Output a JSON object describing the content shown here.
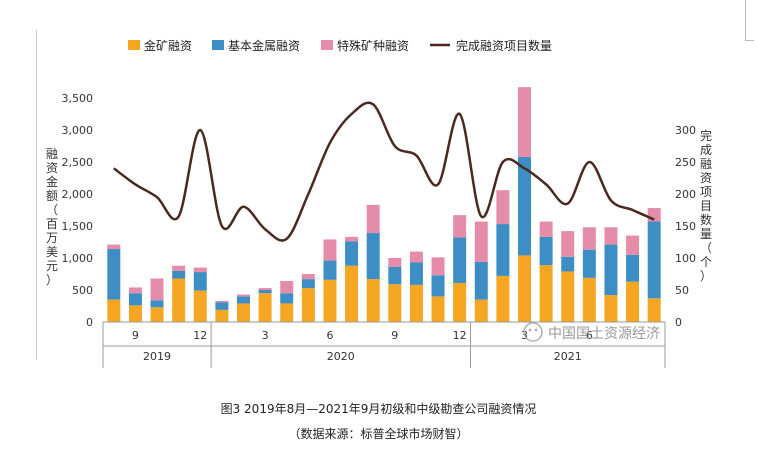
{
  "chart_data": {
    "type": "bar",
    "stacked": true,
    "legend_position": "top",
    "colors": {
      "gold": "#f5a623",
      "base": "#3d8ec4",
      "special": "#e58ca8",
      "line": "#4a2a20"
    },
    "series": [
      {
        "name": "金矿融资",
        "key": "gold",
        "values": [
          350,
          260,
          230,
          680,
          490,
          190,
          290,
          450,
          290,
          530,
          660,
          880,
          670,
          590,
          580,
          400,
          610,
          350,
          720,
          1040,
          890,
          790,
          690,
          420,
          630,
          370
        ]
      },
      {
        "name": "基本金属融资",
        "key": "base",
        "values": [
          790,
          190,
          110,
          120,
          290,
          120,
          110,
          50,
          160,
          140,
          300,
          380,
          720,
          270,
          350,
          330,
          710,
          590,
          810,
          1540,
          440,
          230,
          440,
          790,
          420,
          1200
        ]
      },
      {
        "name": "特殊矿种融资",
        "key": "special",
        "values": [
          70,
          90,
          340,
          80,
          70,
          20,
          30,
          30,
          190,
          80,
          330,
          70,
          440,
          140,
          170,
          280,
          350,
          630,
          530,
          1090,
          240,
          400,
          350,
          270,
          300,
          210
        ]
      }
    ],
    "line_series": {
      "name": "完成融资项目数量",
      "key": "line",
      "axis": "right",
      "values": [
        240,
        215,
        195,
        165,
        300,
        150,
        180,
        145,
        130,
        200,
        280,
        325,
        340,
        275,
        260,
        215,
        325,
        165,
        250,
        240,
        215,
        185,
        250,
        190,
        175,
        160
      ]
    },
    "y_left": {
      "label": "融资金额（百万美元）",
      "ticks": [
        "0",
        "500",
        "1,000",
        "1,500",
        "2,000",
        "2,500",
        "3,000",
        "3,500"
      ],
      "range": [
        0,
        3500
      ]
    },
    "y_right": {
      "label": "完成融资项目数量（个）",
      "ticks": [
        "0",
        "50",
        "100",
        "150",
        "200",
        "250",
        "300"
      ],
      "range": [
        0,
        350
      ]
    },
    "x_month_labels": [
      {
        "index": 1,
        "label": "9"
      },
      {
        "index": 4,
        "label": "12"
      },
      {
        "index": 7,
        "label": "3"
      },
      {
        "index": 10,
        "label": "6"
      },
      {
        "index": 13,
        "label": "9"
      },
      {
        "index": 16,
        "label": "12"
      },
      {
        "index": 19,
        "label": "3"
      },
      {
        "index": 22,
        "label": "6"
      }
    ],
    "year_groups": [
      {
        "label": "2019",
        "start": 0,
        "end": 4
      },
      {
        "label": "2020",
        "start": 5,
        "end": 16
      },
      {
        "label": "2021",
        "start": 17,
        "end": 25
      }
    ]
  },
  "watermark": "中国国土资源经济",
  "caption": "图3  2019年8月—2021年9月初级和中级勘查公司融资情况",
  "source": "（数据来源：标普全球市场财智）"
}
